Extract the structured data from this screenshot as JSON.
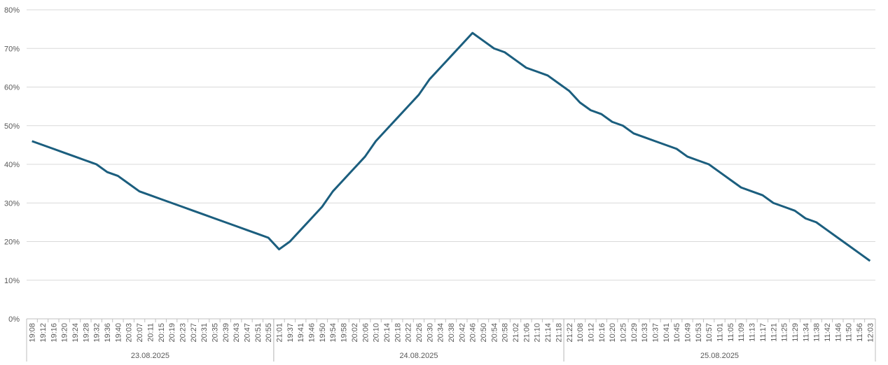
{
  "chart_data": {
    "type": "line",
    "groups": [
      {
        "label": "23.08.2025",
        "categories": [
          "19:08",
          "19:12",
          "19:16",
          "19:20",
          "19:24",
          "19:28",
          "19:32",
          "19:36",
          "19:40",
          "20:03",
          "20:07",
          "20:11",
          "20:15",
          "20:19",
          "20:23",
          "20:27",
          "20:31",
          "20:35",
          "20:39",
          "20:43",
          "20:47",
          "20:51",
          "20:55"
        ]
      },
      {
        "label": "24.08.2025",
        "categories": [
          "21:01",
          "19:37",
          "19:41",
          "19:46",
          "19:50",
          "19:54",
          "19:58",
          "20:02",
          "20:06",
          "20:10",
          "20:14",
          "20:18",
          "20:22",
          "20:26",
          "20:30",
          "20:34",
          "20:38",
          "20:42",
          "20:46",
          "20:50",
          "20:54",
          "20:58",
          "21:02",
          "21:06",
          "21:10",
          "21:14",
          "21:18"
        ]
      },
      {
        "label": "25.08.2025",
        "categories": [
          "21:22",
          "10:08",
          "10:12",
          "10:16",
          "10:20",
          "10:25",
          "10:29",
          "10:33",
          "10:37",
          "10:41",
          "10:45",
          "10:49",
          "10:53",
          "10:57",
          "11:01",
          "11:05",
          "11:09",
          "11:13",
          "11:17",
          "11:21",
          "11:25",
          "11:29",
          "11:34",
          "11:38",
          "11:42",
          "11:46",
          "11:50",
          "11:56",
          "12:03"
        ]
      }
    ],
    "series": [
      {
        "color": "#1b5e7e",
        "values": [
          46,
          45,
          44,
          43,
          42,
          41,
          40,
          38,
          37,
          35,
          33,
          32,
          31,
          30,
          29,
          28,
          27,
          26,
          25,
          24,
          23,
          22,
          21,
          18,
          20,
          23,
          26,
          29,
          33,
          36,
          39,
          42,
          46,
          49,
          52,
          55,
          58,
          62,
          65,
          68,
          71,
          74,
          72,
          70,
          69,
          67,
          65,
          64,
          63,
          61,
          59,
          56,
          54,
          53,
          51,
          50,
          48,
          47,
          46,
          45,
          44,
          42,
          41,
          40,
          38,
          36,
          34,
          33,
          32,
          30,
          29,
          28,
          26,
          25,
          23,
          21,
          19,
          17,
          15
        ]
      }
    ],
    "ylim": [
      0,
      80
    ],
    "yticks": [
      {
        "value": 0,
        "label": "0%"
      },
      {
        "value": 10,
        "label": "10%"
      },
      {
        "value": 20,
        "label": "20%"
      },
      {
        "value": 30,
        "label": "30%"
      },
      {
        "value": 40,
        "label": "40%"
      },
      {
        "value": 50,
        "label": "50%"
      },
      {
        "value": 60,
        "label": "60%"
      },
      {
        "value": 70,
        "label": "70%"
      },
      {
        "value": 80,
        "label": "80%"
      }
    ],
    "grid": true
  }
}
